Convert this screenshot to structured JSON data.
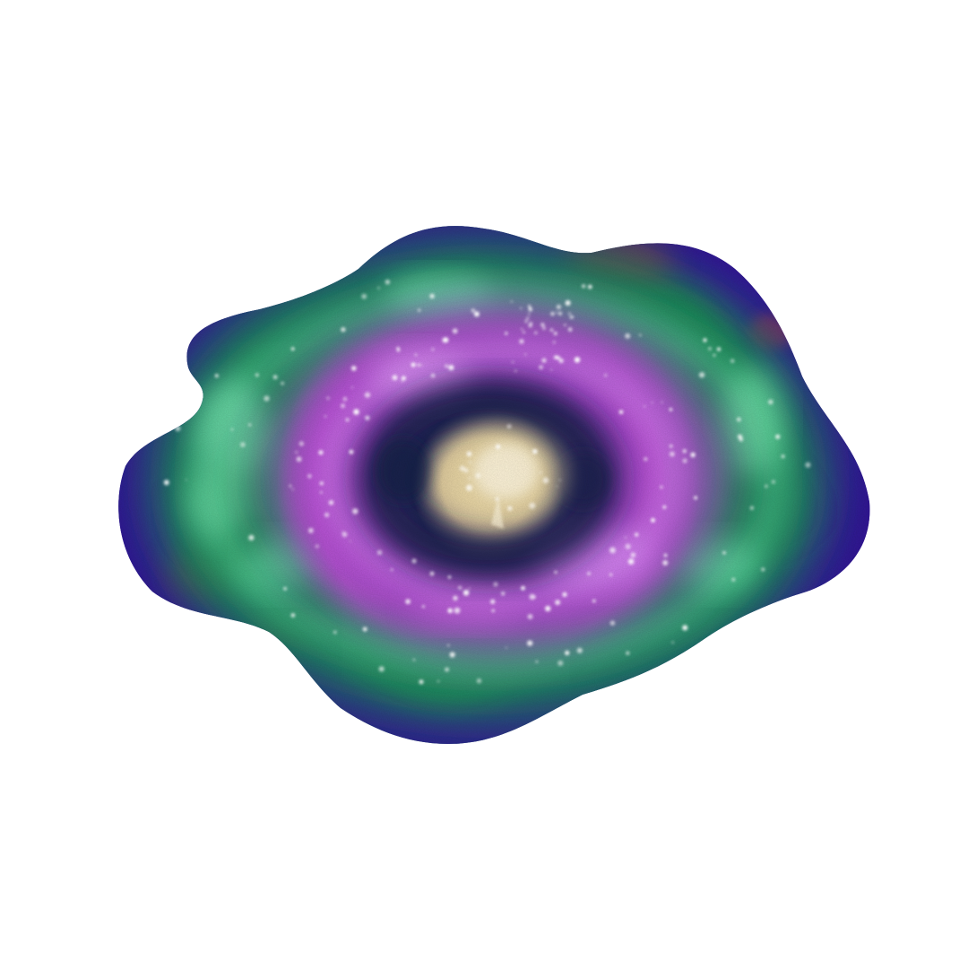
{
  "image": {
    "subject": "watercolor-galaxy",
    "background_color": "#ffffff",
    "palette": {
      "outer_indigo": "#3a1a9e",
      "deep_purple": "#5a1fa8",
      "emerald": "#1f8a5a",
      "mint_glow": "#7dffc0",
      "magenta": "#b04ad0",
      "pink_glow": "#e39bff",
      "navy_core_ring": "#1a2350",
      "golden_core": "#f2deb0",
      "rust_accent": "#a0522d",
      "star_white": "#ffffff"
    }
  }
}
